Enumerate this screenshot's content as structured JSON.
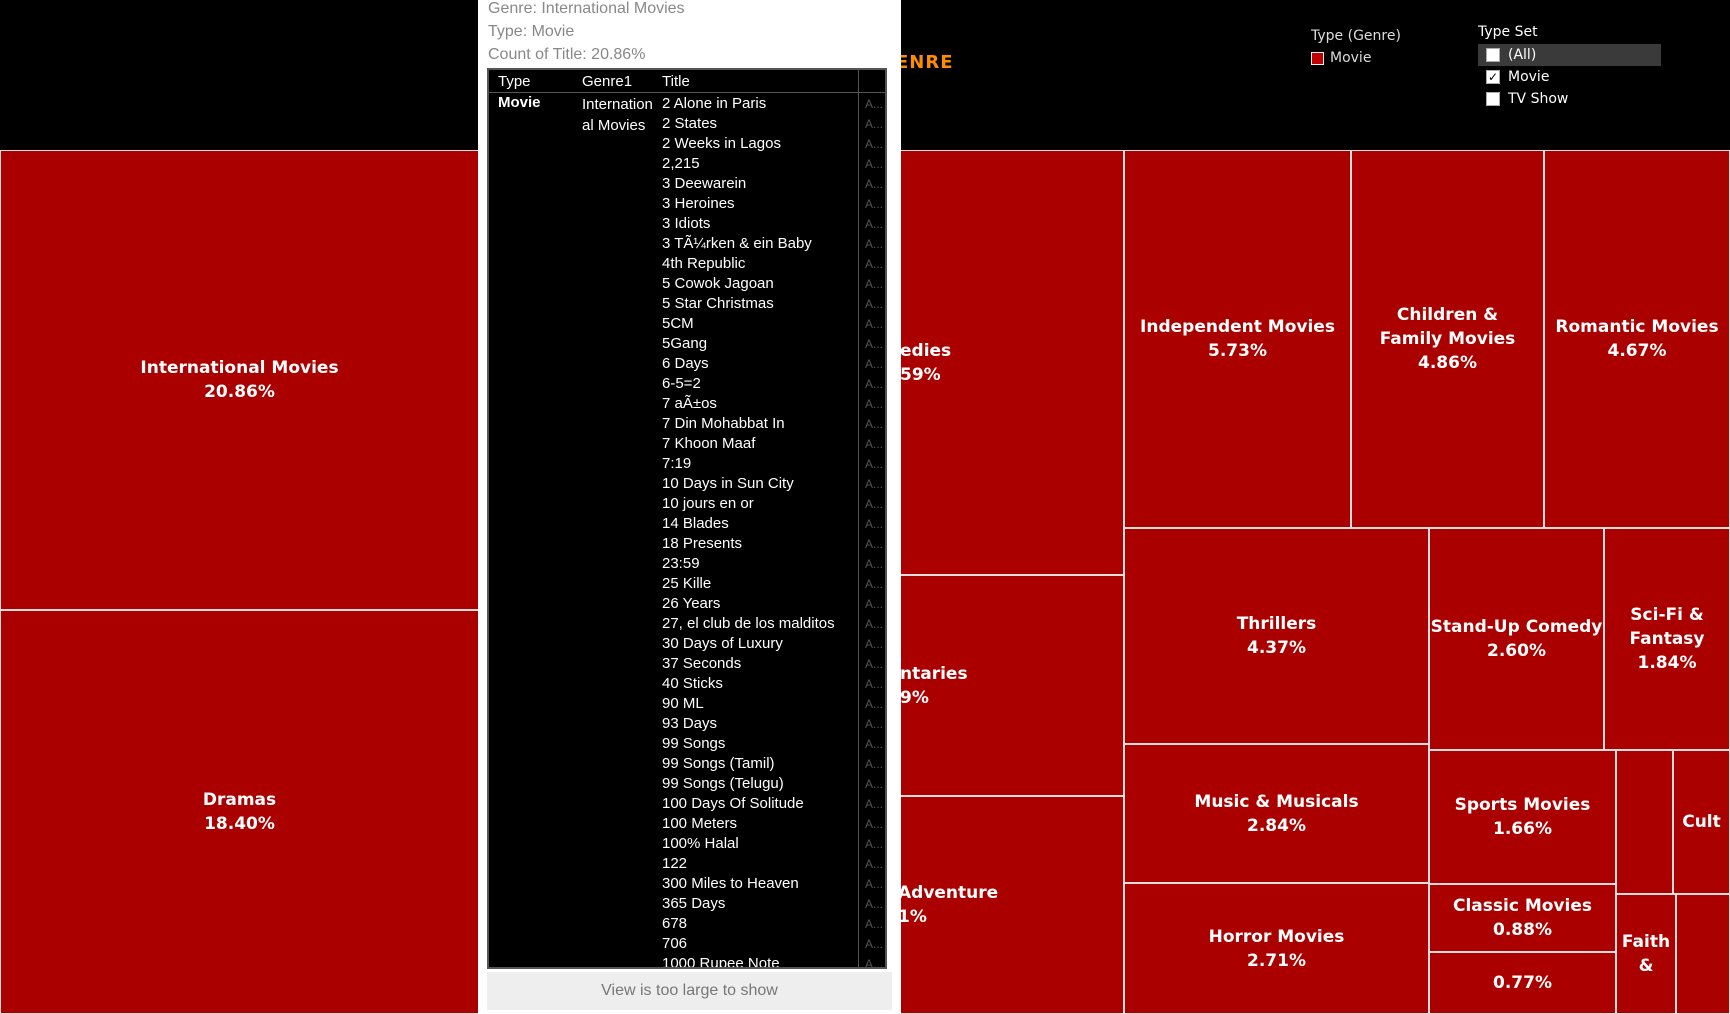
{
  "header": {
    "title_fragment": "ENRE"
  },
  "legend": {
    "title": "Type (Genre)",
    "entry": "Movie"
  },
  "type_set": {
    "title": "Type Set",
    "options": [
      {
        "label": "(All)",
        "checked": false
      },
      {
        "label": "Movie",
        "checked": true
      },
      {
        "label": "TV Show",
        "checked": false
      }
    ]
  },
  "treemap": [
    {
      "id": "international",
      "name": "International Movies",
      "value": "20.86%"
    },
    {
      "id": "dramas",
      "name": "Dramas",
      "value": "18.40%"
    },
    {
      "id": "comedies",
      "name": "edies",
      "value": "59%"
    },
    {
      "id": "documentaries",
      "name": "ntaries",
      "value": "9%"
    },
    {
      "id": "action",
      "name": "Adventure",
      "value": "1%"
    },
    {
      "id": "independent",
      "name": "Independent Movies",
      "value": "5.73%"
    },
    {
      "id": "children",
      "name": "Children & Family Movies",
      "value": "4.86%"
    },
    {
      "id": "romantic",
      "name": "Romantic Movies",
      "value": "4.67%"
    },
    {
      "id": "thrillers",
      "name": "Thrillers",
      "value": "4.37%"
    },
    {
      "id": "standup",
      "name": "Stand-Up Comedy",
      "value": "2.60%"
    },
    {
      "id": "scifi",
      "name": "Sci-Fi & Fantasy",
      "value": "1.84%"
    },
    {
      "id": "music",
      "name": "Music & Musicals",
      "value": "2.84%"
    },
    {
      "id": "sports",
      "name": "Sports Movies",
      "value": "1.66%"
    },
    {
      "id": "blank1",
      "name": "",
      "value": ""
    },
    {
      "id": "cult",
      "name": "Cult",
      "value": ""
    },
    {
      "id": "horror",
      "name": "Horror Movies",
      "value": "2.71%"
    },
    {
      "id": "classic",
      "name": "Classic Movies",
      "value": "0.88%"
    },
    {
      "id": "unnamed",
      "name": "",
      "value": "0.77%"
    },
    {
      "id": "faith",
      "name": "Faith &",
      "value": ""
    },
    {
      "id": "blank2",
      "name": "",
      "value": ""
    }
  ],
  "tooltip": {
    "genre_line": "Genre: International Movies",
    "type_line": "Type: Movie",
    "count_line": "Count of Title: 20.86%",
    "columns": [
      "Type",
      "Genre1",
      "Title"
    ],
    "type_value": "Movie",
    "genre_value": "International Movies",
    "titles": [
      "2 Alone in Paris",
      "2 States",
      "2 Weeks in Lagos",
      "2,215",
      "3 Deewarein",
      "3 Heroines",
      "3 Idiots",
      "3 TÃ¼rken & ein Baby",
      "4th Republic",
      "5 Cowok Jagoan",
      "5 Star Christmas",
      "5CM",
      "5Gang",
      "6 Days",
      "6-5=2",
      "7 aÃ±os",
      "7 Din Mohabbat In",
      "7 Khoon Maaf",
      "7:19",
      "10 Days in Sun City",
      "10 jours en or",
      "14 Blades",
      "18 Presents",
      "23:59",
      "25 Kille",
      "26 Years",
      "27, el club de los malditos",
      "30 Days of Luxury",
      "37 Seconds",
      "40 Sticks",
      "90 ML",
      "93 Days",
      "99 Songs",
      "99 Songs (Tamil)",
      "99 Songs (Telugu)",
      "100 Days Of Solitude",
      "100 Meters",
      "100% Halal",
      "122",
      "300 Miles to Heaven",
      "365 Days",
      "678",
      "706",
      "1000 Rupee Note"
    ],
    "extra_marker": "A...",
    "footer": "View is too large to show"
  }
}
